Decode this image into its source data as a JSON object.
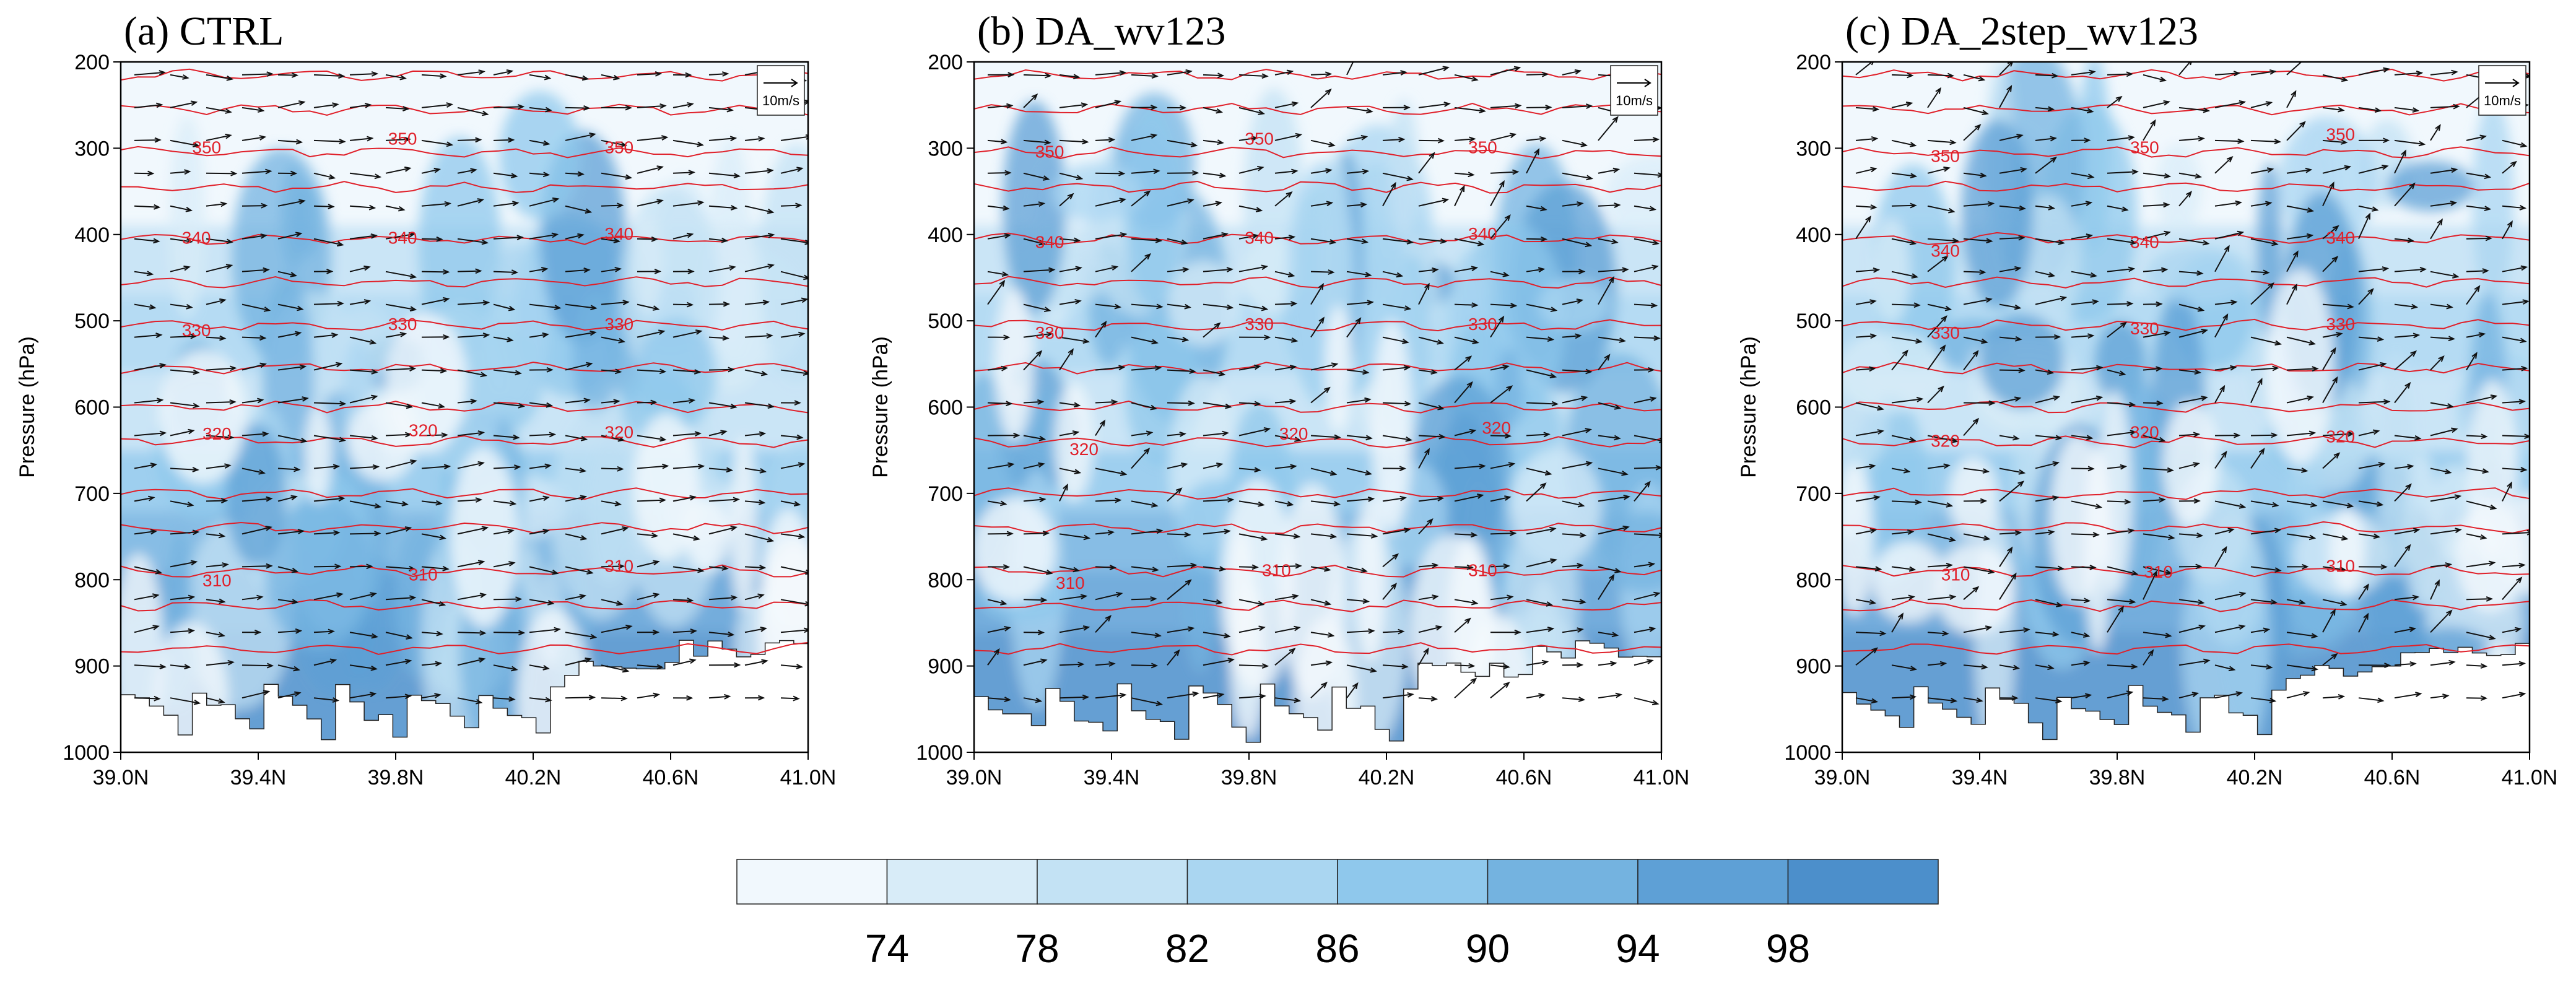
{
  "chart_data": {
    "type": "contour",
    "panels": [
      {
        "title": "(a) CTRL",
        "ylabel": "Pressure (hPa)",
        "xlim": [
          39.0,
          41.0
        ],
        "ylim": [
          1000,
          200
        ],
        "x_ticks": [
          "39.0N",
          "39.4N",
          "39.8N",
          "40.2N",
          "40.6N",
          "41.0N"
        ],
        "y_ticks": [
          "200",
          "300",
          "400",
          "500",
          "600",
          "700",
          "800",
          "900",
          "1000"
        ],
        "ref_vector_label": "10m/s",
        "theta_labels": [
          {
            "text": "350",
            "lat": 39.25,
            "p": 300
          },
          {
            "text": "350",
            "lat": 39.82,
            "p": 290
          },
          {
            "text": "350",
            "lat": 40.45,
            "p": 300
          },
          {
            "text": "340",
            "lat": 39.22,
            "p": 405
          },
          {
            "text": "340",
            "lat": 39.82,
            "p": 405
          },
          {
            "text": "340",
            "lat": 40.45,
            "p": 400
          },
          {
            "text": "330",
            "lat": 39.22,
            "p": 512
          },
          {
            "text": "330",
            "lat": 39.82,
            "p": 505
          },
          {
            "text": "330",
            "lat": 40.45,
            "p": 505
          },
          {
            "text": "320",
            "lat": 39.28,
            "p": 632
          },
          {
            "text": "320",
            "lat": 39.88,
            "p": 628
          },
          {
            "text": "320",
            "lat": 40.45,
            "p": 630
          },
          {
            "text": "310",
            "lat": 39.28,
            "p": 802
          },
          {
            "text": "310",
            "lat": 39.88,
            "p": 795
          },
          {
            "text": "310",
            "lat": 40.45,
            "p": 785
          }
        ]
      },
      {
        "title": "(b) DA_wv123",
        "ylabel": "Pressure (hPa)",
        "xlim": [
          39.0,
          41.0
        ],
        "ylim": [
          1000,
          200
        ],
        "x_ticks": [
          "39.0N",
          "39.4N",
          "39.8N",
          "40.2N",
          "40.6N",
          "41.0N"
        ],
        "y_ticks": [
          "200",
          "300",
          "400",
          "500",
          "600",
          "700",
          "800",
          "900",
          "1000"
        ],
        "ref_vector_label": "10m/s",
        "theta_labels": [
          {
            "text": "350",
            "lat": 39.22,
            "p": 305
          },
          {
            "text": "350",
            "lat": 39.83,
            "p": 290
          },
          {
            "text": "350",
            "lat": 40.48,
            "p": 300
          },
          {
            "text": "340",
            "lat": 39.22,
            "p": 410
          },
          {
            "text": "340",
            "lat": 39.83,
            "p": 405
          },
          {
            "text": "340",
            "lat": 40.48,
            "p": 400
          },
          {
            "text": "330",
            "lat": 39.22,
            "p": 515
          },
          {
            "text": "330",
            "lat": 39.83,
            "p": 505
          },
          {
            "text": "330",
            "lat": 40.48,
            "p": 505
          },
          {
            "text": "320",
            "lat": 39.32,
            "p": 650
          },
          {
            "text": "320",
            "lat": 39.93,
            "p": 632
          },
          {
            "text": "320",
            "lat": 40.52,
            "p": 625
          },
          {
            "text": "310",
            "lat": 39.28,
            "p": 805
          },
          {
            "text": "310",
            "lat": 39.88,
            "p": 790
          },
          {
            "text": "310",
            "lat": 40.48,
            "p": 790
          }
        ]
      },
      {
        "title": "(c) DA_2step_wv123",
        "ylabel": "Pressure (hPa)",
        "xlim": [
          39.0,
          41.0
        ],
        "ylim": [
          1000,
          200
        ],
        "x_ticks": [
          "39.0N",
          "39.4N",
          "39.8N",
          "40.2N",
          "40.6N",
          "41.0N"
        ],
        "y_ticks": [
          "200",
          "300",
          "400",
          "500",
          "600",
          "700",
          "800",
          "900",
          "1000"
        ],
        "ref_vector_label": "10m/s",
        "theta_labels": [
          {
            "text": "350",
            "lat": 39.3,
            "p": 310
          },
          {
            "text": "350",
            "lat": 39.88,
            "p": 300
          },
          {
            "text": "350",
            "lat": 40.45,
            "p": 285
          },
          {
            "text": "340",
            "lat": 39.3,
            "p": 420
          },
          {
            "text": "340",
            "lat": 39.88,
            "p": 410
          },
          {
            "text": "340",
            "lat": 40.45,
            "p": 405
          },
          {
            "text": "330",
            "lat": 39.3,
            "p": 515
          },
          {
            "text": "330",
            "lat": 39.88,
            "p": 510
          },
          {
            "text": "330",
            "lat": 40.45,
            "p": 505
          },
          {
            "text": "320",
            "lat": 39.3,
            "p": 640
          },
          {
            "text": "320",
            "lat": 39.88,
            "p": 630
          },
          {
            "text": "320",
            "lat": 40.45,
            "p": 635
          },
          {
            "text": "310",
            "lat": 39.33,
            "p": 795
          },
          {
            "text": "310",
            "lat": 39.92,
            "p": 792
          },
          {
            "text": "310",
            "lat": 40.45,
            "p": 785
          }
        ]
      }
    ],
    "colorbar": {
      "ticks": [
        "74",
        "78",
        "82",
        "86",
        "90",
        "94",
        "98"
      ],
      "colors": [
        "#f1f8fd",
        "#d8ecf8",
        "#c3e2f4",
        "#aad6f1",
        "#8fc8ec",
        "#74b3e0",
        "#5ea0d6",
        "#4c8fcb"
      ]
    },
    "contour_levels": [
      310,
      320,
      330,
      340,
      350
    ]
  },
  "colors": {
    "contour_line": "#e0202a",
    "vector": "#111111"
  }
}
